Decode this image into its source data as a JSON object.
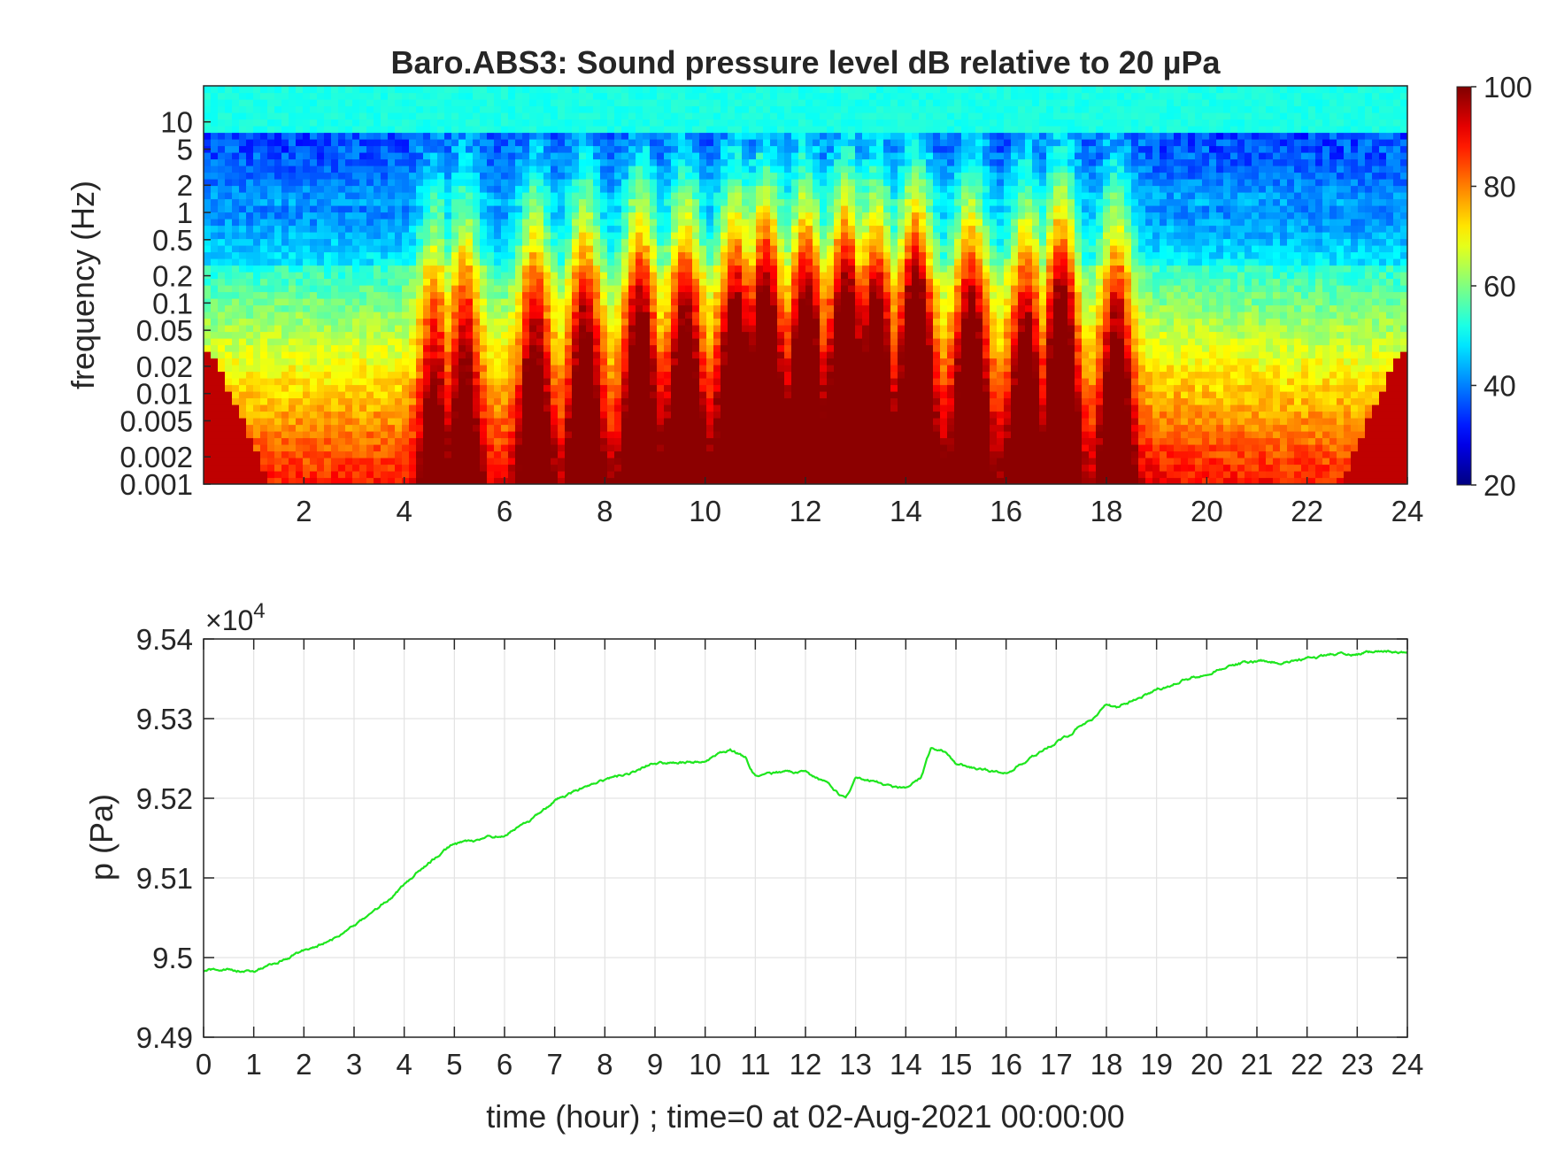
{
  "chart_data": [
    {
      "type": "heatmap",
      "title": "Baro.ABS3: Sound pressure level dB relative to 20 µPa",
      "ylabel": "frequency (Hz)",
      "xlim": [
        0,
        24
      ],
      "x_ticks": [
        2,
        4,
        6,
        8,
        10,
        12,
        14,
        16,
        18,
        20,
        22,
        24
      ],
      "y_scale": "log",
      "ylim": [
        0.001,
        25
      ],
      "y_ticks": [
        0.001,
        0.002,
        0.005,
        0.01,
        0.02,
        0.05,
        0.1,
        0.2,
        0.5,
        1,
        2,
        5,
        10
      ],
      "y_tick_labels": [
        "0.001",
        "0.002",
        "0.005",
        "0.01",
        "0.02",
        "0.05",
        "0.1",
        "0.2",
        "0.5",
        "1",
        "2",
        "5",
        "10"
      ],
      "colorbar": {
        "colormap": "jet",
        "range": [
          20,
          100
        ],
        "ticks": [
          20,
          40,
          60,
          80,
          100
        ],
        "position": "right"
      },
      "activity_bursts": [
        {
          "hour": 4.6,
          "strength": 0.55
        },
        {
          "hour": 5.2,
          "strength": 0.65
        },
        {
          "hour": 6.6,
          "strength": 0.7
        },
        {
          "hour": 7.6,
          "strength": 0.75
        },
        {
          "hour": 8.7,
          "strength": 0.8
        },
        {
          "hour": 9.6,
          "strength": 0.75
        },
        {
          "hour": 10.6,
          "strength": 0.8
        },
        {
          "hour": 11.2,
          "strength": 0.95
        },
        {
          "hour": 12.0,
          "strength": 0.85
        },
        {
          "hour": 12.8,
          "strength": 0.95
        },
        {
          "hour": 13.4,
          "strength": 0.8
        },
        {
          "hour": 14.2,
          "strength": 1.0
        },
        {
          "hour": 15.3,
          "strength": 0.8
        },
        {
          "hour": 16.4,
          "strength": 0.7
        },
        {
          "hour": 17.1,
          "strength": 1.0
        },
        {
          "hour": 18.2,
          "strength": 0.75
        }
      ]
    },
    {
      "type": "line",
      "xlabel": "time (hour) ; time=0 at 02-Aug-2021 00:00:00",
      "ylabel": "p (Pa)",
      "y_multiplier_label": "×10",
      "y_multiplier_exponent": "4",
      "xlim": [
        0,
        24
      ],
      "ylim": [
        94900,
        95400
      ],
      "x_ticks": [
        0,
        1,
        2,
        3,
        4,
        5,
        6,
        7,
        8,
        9,
        10,
        11,
        12,
        13,
        14,
        15,
        16,
        17,
        18,
        19,
        20,
        21,
        22,
        23,
        24
      ],
      "y_ticks": [
        94900,
        95000,
        95100,
        95200,
        95300,
        95400
      ],
      "y_tick_labels": [
        "9.49",
        "9.5",
        "9.51",
        "9.52",
        "9.53",
        "9.54"
      ],
      "grid": true,
      "color": "#1ee61e",
      "series": [
        {
          "x": [
            0,
            0.5,
            1.0,
            1.5,
            2.0,
            2.5,
            3.0,
            3.5,
            4.0,
            4.3,
            4.6,
            5.0,
            5.5,
            6.0,
            6.5,
            7.0,
            7.5,
            8.0,
            8.5,
            9.0,
            9.5,
            10.0,
            10.3,
            10.5,
            10.8,
            11.0,
            11.2,
            11.5,
            12.0,
            12.5,
            12.8,
            13.0,
            13.3,
            13.7,
            14.0,
            14.3,
            14.5,
            14.8,
            15.0,
            15.5,
            16.0,
            16.5,
            17.0,
            17.3,
            17.5,
            17.8,
            18.0,
            18.2,
            18.5,
            19.0,
            19.5,
            20.0,
            20.5,
            21.0,
            21.5,
            22.0,
            22.5,
            23.0,
            23.5,
            24.0
          ],
          "y": [
            94983,
            94985,
            94982,
            94995,
            95008,
            95020,
            95040,
            95062,
            95090,
            95110,
            95125,
            95143,
            95147,
            95155,
            95170,
            95198,
            95212,
            95222,
            95232,
            95245,
            95246,
            95246,
            95260,
            95262,
            95250,
            95228,
            95228,
            95232,
            95232,
            95215,
            95198,
            95225,
            95222,
            95215,
            95210,
            95225,
            95262,
            95258,
            95242,
            95237,
            95232,
            95250,
            95270,
            95282,
            95292,
            95303,
            95318,
            95313,
            95322,
            95335,
            95348,
            95356,
            95368,
            95372,
            95372,
            95375,
            95380,
            95382,
            95385,
            95385
          ]
        }
      ]
    }
  ]
}
